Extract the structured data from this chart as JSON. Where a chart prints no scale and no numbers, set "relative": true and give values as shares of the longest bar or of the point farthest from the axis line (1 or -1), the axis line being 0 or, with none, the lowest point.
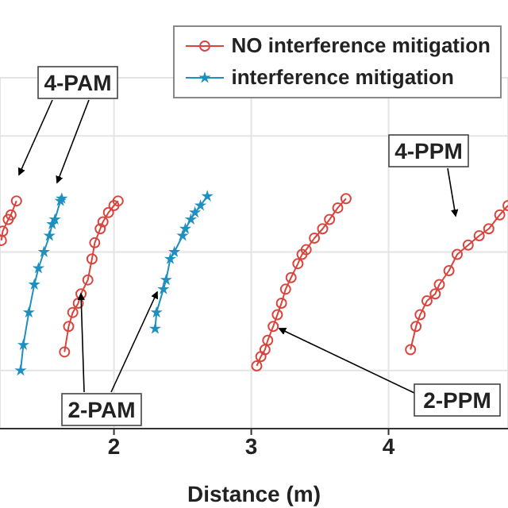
{
  "chart_data": {
    "type": "line",
    "xlabel": "Distance (m)",
    "relative": true,
    "xlim": [
      1.17,
      4.87
    ],
    "xticks": [
      2,
      3,
      4
    ],
    "grid": true,
    "legend": "top right",
    "annotations": [
      "4-PAM",
      "2-PAM",
      "4-PPM",
      "2-PPM"
    ],
    "series": [
      {
        "name": "NO interference mitigation",
        "color": "#d9443c",
        "marker": "circle",
        "x": [
          1.18,
          1.19,
          1.23,
          1.25,
          1.29
        ],
        "values": [
          0.81,
          0.85,
          0.9,
          0.92,
          0.98
        ]
      },
      {
        "name": "interference mitigation",
        "color": "#1f8fbf",
        "marker": "star",
        "x": [
          1.32,
          1.34,
          1.38,
          1.42,
          1.45,
          1.49,
          1.53,
          1.55,
          1.57,
          1.61,
          1.62
        ],
        "values": [
          0.25,
          0.36,
          0.5,
          0.62,
          0.69,
          0.76,
          0.83,
          0.88,
          0.9,
          0.98,
          0.99
        ]
      },
      {
        "color": "#d9443c",
        "marker": "circle",
        "x": [
          1.64,
          1.67,
          1.7,
          1.74,
          1.76,
          1.81,
          1.84,
          1.86,
          1.9,
          1.92,
          1.96,
          2.0,
          2.03
        ],
        "values": [
          0.33,
          0.44,
          0.5,
          0.54,
          0.58,
          0.64,
          0.73,
          0.8,
          0.86,
          0.89,
          0.93,
          0.96,
          0.98
        ]
      },
      {
        "color": "#1f8fbf",
        "marker": "star",
        "x": [
          2.3,
          2.31,
          2.36,
          2.38,
          2.41,
          2.44,
          2.5,
          2.52,
          2.56,
          2.59,
          2.63,
          2.68
        ],
        "values": [
          0.43,
          0.5,
          0.6,
          0.64,
          0.73,
          0.76,
          0.83,
          0.86,
          0.9,
          0.93,
          0.96,
          1.0
        ]
      },
      {
        "color": "#d9443c",
        "marker": "circle",
        "x": [
          3.04,
          3.07,
          3.1,
          3.12,
          3.16,
          3.19,
          3.22,
          3.25,
          3.29,
          3.34,
          3.37,
          3.4,
          3.46,
          3.52,
          3.57,
          3.63,
          3.69
        ],
        "values": [
          0.27,
          0.31,
          0.34,
          0.38,
          0.44,
          0.49,
          0.54,
          0.6,
          0.65,
          0.71,
          0.75,
          0.77,
          0.82,
          0.86,
          0.9,
          0.95,
          0.99
        ]
      },
      {
        "color": "#d9443c",
        "marker": "circle",
        "x": [
          4.16,
          4.2,
          4.23,
          4.28,
          4.34,
          4.37,
          4.44,
          4.5,
          4.58,
          4.66,
          4.73,
          4.81,
          4.87
        ],
        "values": [
          0.34,
          0.44,
          0.49,
          0.55,
          0.58,
          0.62,
          0.68,
          0.75,
          0.79,
          0.83,
          0.86,
          0.92,
          0.96
        ]
      }
    ]
  }
}
